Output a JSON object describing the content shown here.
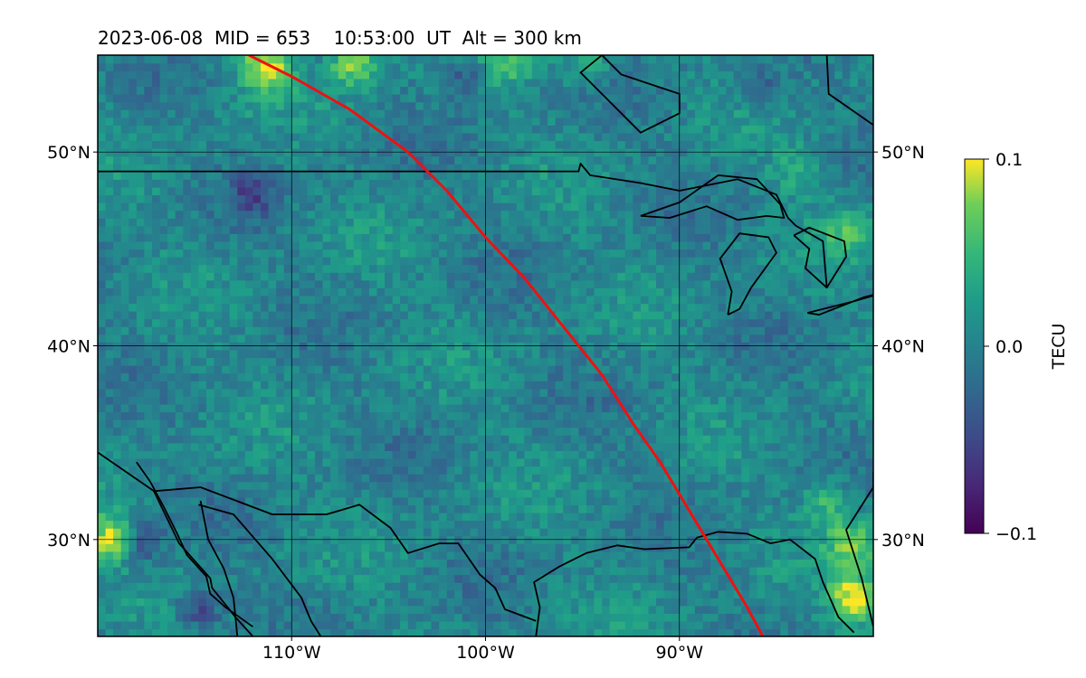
{
  "chart_data": {
    "type": "heatmap",
    "title": "2023-06-08  MID = 653    10:53:00  UT  Alt = 300 km",
    "projection": "lat-lon map",
    "xlim": [
      -120,
      -80
    ],
    "ylim": [
      25,
      55
    ],
    "x_ticks": [
      -110,
      -100,
      -90
    ],
    "x_tick_labels": [
      "110°W",
      "100°W",
      "90°W"
    ],
    "y_ticks": [
      30,
      40,
      50
    ],
    "y_tick_labels": [
      "30°N",
      "40°N",
      "50°N"
    ],
    "grid": true,
    "colorbar": {
      "label": "TECU",
      "min": -0.1,
      "max": 0.1,
      "ticks": [
        0.1,
        0.0,
        -0.1
      ],
      "tick_labels": [
        "0.1",
        "0.0",
        "−0.1"
      ],
      "colormap": "viridis"
    },
    "terminator_line": {
      "color": "#ee1111",
      "points": [
        [
          -112.2,
          55.0
        ],
        [
          -110,
          53.9
        ],
        [
          -107,
          52.2
        ],
        [
          -104,
          50.0
        ],
        [
          -102,
          48.0
        ],
        [
          -100,
          45.6
        ],
        [
          -98,
          43.5
        ],
        [
          -96,
          41.0
        ],
        [
          -94,
          38.5
        ],
        [
          -92.4,
          36.0
        ],
        [
          -91,
          34.0
        ],
        [
          -89.5,
          31.5
        ],
        [
          -88,
          29.0
        ],
        [
          -86.5,
          26.5
        ],
        [
          -85.7,
          25.0
        ]
      ]
    },
    "coastlines": [
      {
        "name": "us-canada-border",
        "points": [
          [
            -120,
            49.0
          ],
          [
            -95.2,
            49.0
          ],
          [
            -95.1,
            49.4
          ],
          [
            -94.6,
            48.8
          ],
          [
            -92,
            48.4
          ],
          [
            -90.0,
            48.0
          ],
          [
            -89.0,
            48.2
          ],
          [
            -87.0,
            48.6
          ],
          [
            -85.0,
            47.8
          ],
          [
            -84.4,
            46.6
          ],
          [
            -84.0,
            46.2
          ],
          [
            -82.6,
            45.4
          ],
          [
            -82.4,
            43.0
          ]
        ]
      },
      {
        "name": "lake-superior",
        "points": [
          [
            -92.0,
            46.7
          ],
          [
            -90.0,
            47.4
          ],
          [
            -88.0,
            48.8
          ],
          [
            -86.0,
            48.6
          ],
          [
            -84.8,
            47.3
          ],
          [
            -84.6,
            46.6
          ],
          [
            -85.5,
            46.7
          ],
          [
            -87.0,
            46.5
          ],
          [
            -88.6,
            47.2
          ],
          [
            -90.5,
            46.6
          ],
          [
            -92.0,
            46.7
          ]
        ]
      },
      {
        "name": "lake-michigan",
        "points": [
          [
            -87.5,
            41.6
          ],
          [
            -87.3,
            42.8
          ],
          [
            -87.9,
            44.5
          ],
          [
            -86.9,
            45.8
          ],
          [
            -85.4,
            45.6
          ],
          [
            -85.0,
            44.8
          ],
          [
            -86.3,
            43.0
          ],
          [
            -86.9,
            41.9
          ],
          [
            -87.5,
            41.6
          ]
        ]
      },
      {
        "name": "lake-huron",
        "points": [
          [
            -84.1,
            45.7
          ],
          [
            -83.3,
            46.1
          ],
          [
            -81.5,
            45.4
          ],
          [
            -81.4,
            44.6
          ],
          [
            -82.4,
            43.0
          ],
          [
            -83.5,
            44.0
          ],
          [
            -83.3,
            45.0
          ],
          [
            -84.1,
            45.7
          ]
        ]
      },
      {
        "name": "lake-erie",
        "points": [
          [
            -83.4,
            41.7
          ],
          [
            -81.0,
            42.3
          ],
          [
            -78.9,
            42.9
          ],
          [
            -80.5,
            42.5
          ],
          [
            -82.8,
            41.6
          ],
          [
            -83.4,
            41.7
          ]
        ]
      },
      {
        "name": "hudson-bay-edge",
        "points": [
          [
            -94.0,
            55.0
          ],
          [
            -93.0,
            54.0
          ],
          [
            -91.5,
            53.5
          ],
          [
            -90.0,
            53.0
          ],
          [
            -90.0,
            52.0
          ],
          [
            -92.0,
            51.0
          ],
          [
            -93.6,
            52.6
          ],
          [
            -95.1,
            54.1
          ],
          [
            -94.0,
            55.0
          ]
        ]
      },
      {
        "name": "james-bay-edge",
        "points": [
          [
            -82.4,
            55.0
          ],
          [
            -82.3,
            53.0
          ],
          [
            -80.0,
            51.4
          ]
        ]
      },
      {
        "name": "gulf-coast",
        "points": [
          [
            -97.4,
            25.0
          ],
          [
            -97.2,
            26.5
          ],
          [
            -97.5,
            27.8
          ],
          [
            -96.2,
            28.6
          ],
          [
            -94.8,
            29.3
          ],
          [
            -93.2,
            29.7
          ],
          [
            -91.8,
            29.5
          ],
          [
            -89.5,
            29.6
          ],
          [
            -89.1,
            30.1
          ],
          [
            -88.0,
            30.4
          ],
          [
            -86.5,
            30.3
          ],
          [
            -85.3,
            29.8
          ],
          [
            -84.3,
            30.0
          ],
          [
            -83.0,
            29.0
          ],
          [
            -82.6,
            27.8
          ],
          [
            -81.8,
            26.0
          ],
          [
            -81.0,
            25.2
          ]
        ]
      },
      {
        "name": "atlantic-coast",
        "points": [
          [
            -80.0,
            25.5
          ],
          [
            -80.6,
            28.0
          ],
          [
            -81.4,
            30.5
          ],
          [
            -80.0,
            32.7
          ],
          [
            -80.0,
            33.5
          ]
        ]
      },
      {
        "name": "mexico-border",
        "points": [
          [
            -120,
            34.5
          ],
          [
            -117.1,
            32.5
          ],
          [
            -114.7,
            32.7
          ],
          [
            -111.0,
            31.3
          ],
          [
            -108.2,
            31.3
          ],
          [
            -106.5,
            31.8
          ],
          [
            -104.9,
            30.6
          ],
          [
            -104.0,
            29.3
          ],
          [
            -102.4,
            29.8
          ],
          [
            -101.4,
            29.8
          ],
          [
            -100.3,
            28.2
          ],
          [
            -99.5,
            27.5
          ],
          [
            -99.0,
            26.4
          ],
          [
            -97.4,
            25.8
          ]
        ]
      },
      {
        "name": "baja-peninsula",
        "points": [
          [
            -117.1,
            32.5
          ],
          [
            -115.8,
            29.8
          ],
          [
            -114.2,
            28.0
          ],
          [
            -114.1,
            27.5
          ],
          [
            -112.9,
            26.0
          ],
          [
            -112.0,
            25.0
          ]
        ]
      },
      {
        "name": "gulf-of-california-east",
        "points": [
          [
            -114.8,
            31.8
          ],
          [
            -113.0,
            31.3
          ],
          [
            -111.0,
            29.0
          ],
          [
            -109.5,
            27.0
          ],
          [
            -109.0,
            25.8
          ],
          [
            -108.5,
            25.0
          ]
        ]
      },
      {
        "name": "gulf-of-california-west",
        "points": [
          [
            -114.7,
            32.0
          ],
          [
            -114.3,
            30.0
          ],
          [
            -113.5,
            28.5
          ],
          [
            -113.0,
            27.0
          ],
          [
            -112.8,
            25.0
          ]
        ]
      },
      {
        "name": "baja-pacific-coast",
        "points": [
          [
            -118.0,
            34.0
          ],
          [
            -117.3,
            33.0
          ],
          [
            -116.6,
            31.7
          ],
          [
            -115.9,
            30.3
          ],
          [
            -115.4,
            29.2
          ],
          [
            -114.4,
            28.1
          ],
          [
            -114.2,
            27.2
          ],
          [
            -113.4,
            26.5
          ],
          [
            -112.0,
            25.5
          ]
        ]
      }
    ]
  }
}
